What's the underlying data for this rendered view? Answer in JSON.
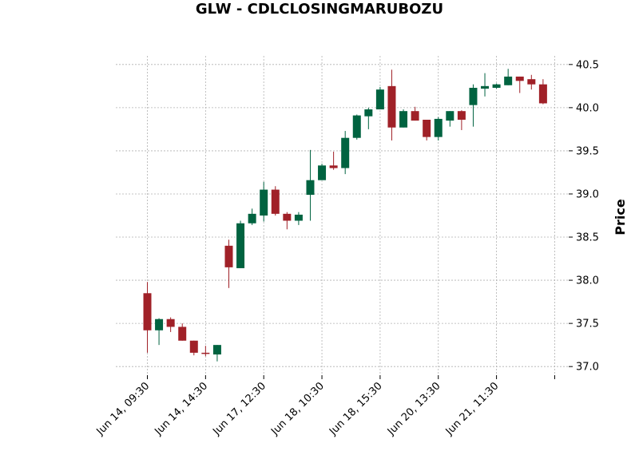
{
  "chart_data": {
    "type": "candlestick",
    "title": "GLW - CDLCLOSINGMARUBOZU",
    "ylabel": "Price",
    "xlabel": "",
    "ylim": [
      36.9,
      40.6
    ],
    "yticks": [
      37.0,
      37.5,
      38.0,
      38.5,
      39.0,
      39.5,
      40.0,
      40.5
    ],
    "xtick_labels": [
      {
        "index": 0,
        "label": "Jun 14, 09:30"
      },
      {
        "index": 5,
        "label": "Jun 14, 14:30"
      },
      {
        "index": 10,
        "label": "Jun 17, 12:30"
      },
      {
        "index": 15,
        "label": "Jun 18, 10:30"
      },
      {
        "index": 20,
        "label": "Jun 18, 15:30"
      },
      {
        "index": 25,
        "label": "Jun 20, 13:30"
      },
      {
        "index": 30,
        "label": "Jun 21, 11:30"
      },
      {
        "index": 35,
        "label": ""
      }
    ],
    "up_color": "#006340",
    "down_color": "#A02128",
    "grid": true,
    "candles": [
      {
        "o": 37.85,
        "h": 37.98,
        "l": 37.16,
        "c": 37.42
      },
      {
        "o": 37.42,
        "h": 37.56,
        "l": 37.25,
        "c": 37.55
      },
      {
        "o": 37.55,
        "h": 37.57,
        "l": 37.4,
        "c": 37.46
      },
      {
        "o": 37.46,
        "h": 37.5,
        "l": 37.3,
        "c": 37.3
      },
      {
        "o": 37.3,
        "h": 37.3,
        "l": 37.13,
        "c": 37.16
      },
      {
        "o": 37.16,
        "h": 37.24,
        "l": 37.12,
        "c": 37.15
      },
      {
        "o": 37.14,
        "h": 37.25,
        "l": 37.06,
        "c": 37.25
      },
      {
        "o": 38.4,
        "h": 38.47,
        "l": 37.91,
        "c": 38.15
      },
      {
        "o": 38.14,
        "h": 38.69,
        "l": 38.14,
        "c": 38.66
      },
      {
        "o": 38.66,
        "h": 38.83,
        "l": 38.64,
        "c": 38.77
      },
      {
        "o": 38.75,
        "h": 39.14,
        "l": 38.68,
        "c": 39.05
      },
      {
        "o": 39.05,
        "h": 39.09,
        "l": 38.75,
        "c": 38.77
      },
      {
        "o": 38.77,
        "h": 38.79,
        "l": 38.59,
        "c": 38.69
      },
      {
        "o": 38.69,
        "h": 38.79,
        "l": 38.64,
        "c": 38.76
      },
      {
        "o": 38.99,
        "h": 39.51,
        "l": 38.69,
        "c": 39.16
      },
      {
        "o": 39.16,
        "h": 39.35,
        "l": 39.16,
        "c": 39.33
      },
      {
        "o": 39.33,
        "h": 39.49,
        "l": 39.28,
        "c": 39.3
      },
      {
        "o": 39.3,
        "h": 39.73,
        "l": 39.23,
        "c": 39.65
      },
      {
        "o": 39.65,
        "h": 39.92,
        "l": 39.63,
        "c": 39.91
      },
      {
        "o": 39.9,
        "h": 40.0,
        "l": 39.75,
        "c": 39.98
      },
      {
        "o": 39.98,
        "h": 40.24,
        "l": 39.98,
        "c": 40.21
      },
      {
        "o": 40.25,
        "h": 40.44,
        "l": 39.62,
        "c": 39.77
      },
      {
        "o": 39.77,
        "h": 39.98,
        "l": 39.77,
        "c": 39.96
      },
      {
        "o": 39.96,
        "h": 40.01,
        "l": 39.85,
        "c": 39.85
      },
      {
        "o": 39.86,
        "h": 39.86,
        "l": 39.62,
        "c": 39.66
      },
      {
        "o": 39.66,
        "h": 39.89,
        "l": 39.62,
        "c": 39.87
      },
      {
        "o": 39.85,
        "h": 39.96,
        "l": 39.78,
        "c": 39.96
      },
      {
        "o": 39.96,
        "h": 39.97,
        "l": 39.74,
        "c": 39.86
      },
      {
        "o": 40.03,
        "h": 40.27,
        "l": 39.78,
        "c": 40.23
      },
      {
        "o": 40.22,
        "h": 40.4,
        "l": 40.13,
        "c": 40.25
      },
      {
        "o": 40.23,
        "h": 40.28,
        "l": 40.22,
        "c": 40.27
      },
      {
        "o": 40.26,
        "h": 40.45,
        "l": 40.26,
        "c": 40.36
      },
      {
        "o": 40.36,
        "h": 40.36,
        "l": 40.17,
        "c": 40.31
      },
      {
        "o": 40.33,
        "h": 40.38,
        "l": 40.21,
        "c": 40.27
      },
      {
        "o": 40.27,
        "h": 40.33,
        "l": 40.04,
        "c": 40.05
      }
    ]
  }
}
